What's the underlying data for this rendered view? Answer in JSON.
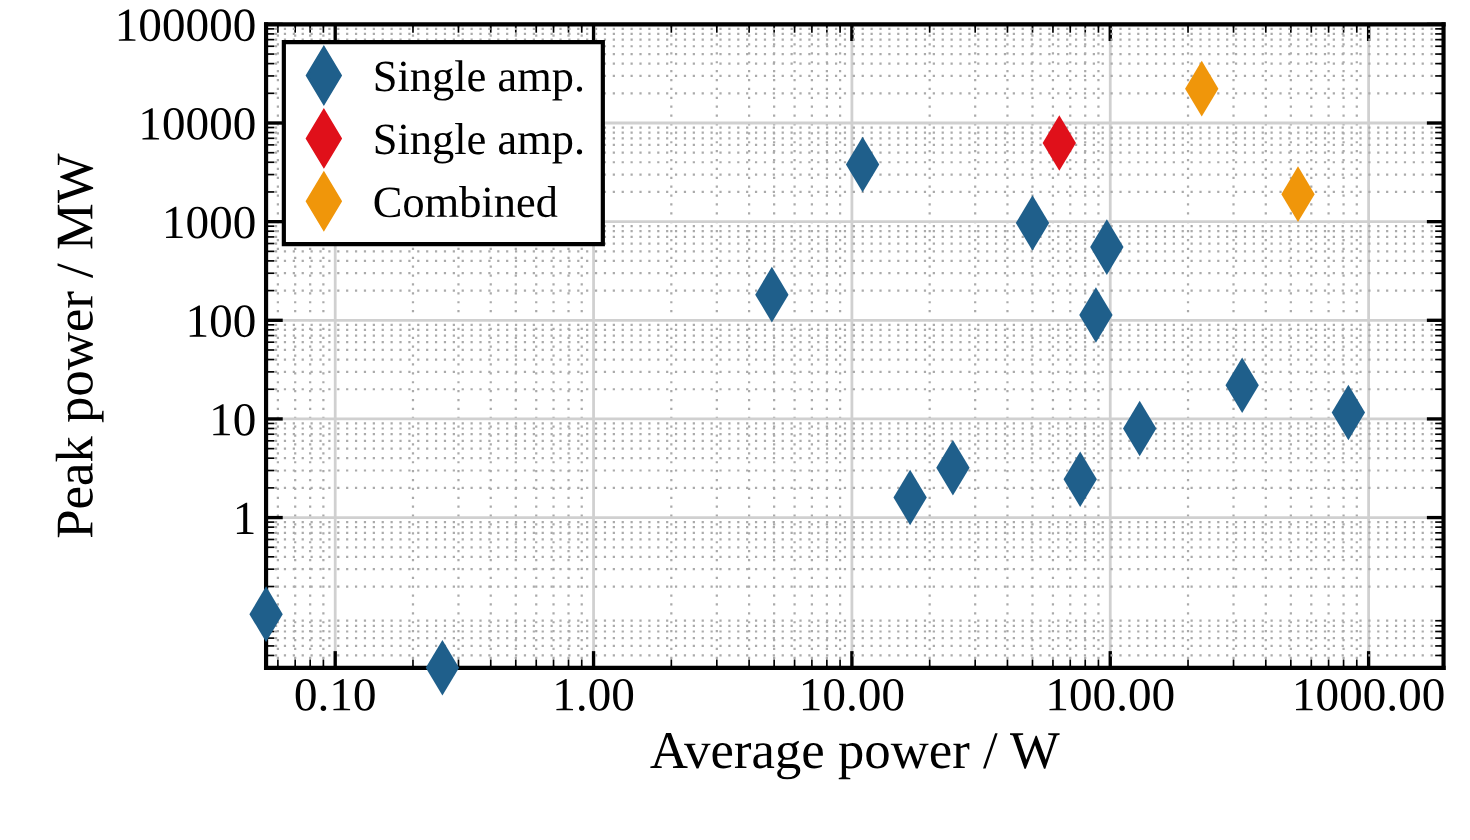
{
  "chart_data": {
    "type": "scatter",
    "xlabel": "Average power / W",
    "ylabel": "Peak power / MW",
    "log": "xy",
    "grid": true,
    "legend": "top left",
    "marker": "diamond",
    "xlim": [
      0.054,
      1950
    ],
    "ylim": [
      0.03,
      100000
    ],
    "xticks": [
      {
        "value": 0.1,
        "label": "0.10"
      },
      {
        "value": 1,
        "label": "1.00"
      },
      {
        "value": 10,
        "label": "10.00"
      },
      {
        "value": 100,
        "label": "100.00"
      },
      {
        "value": 1000,
        "label": "1000.00"
      }
    ],
    "yticks": [
      1,
      10,
      100,
      1000,
      10000,
      100000
    ],
    "series": [
      {
        "name": "Single amp.",
        "color": "#1f5f8b",
        "x": [
          0.054,
          0.26,
          4.9,
          11,
          16.8,
          24.6,
          50,
          76.5,
          88,
          97,
          130,
          324,
          835
        ],
        "values": [
          0.105,
          0.03,
          182,
          3800,
          1.6,
          3.2,
          970,
          2.45,
          113,
          552,
          8.0,
          22,
          11.6
        ]
      },
      {
        "name": "Single amp.",
        "color": "#e0101a",
        "x": [
          63.5
        ],
        "values": [
          6270
        ]
      },
      {
        "name": "Combined",
        "color": "#f0960a",
        "x": [
          226,
          533
        ],
        "values": [
          22300,
          1900
        ]
      }
    ]
  }
}
